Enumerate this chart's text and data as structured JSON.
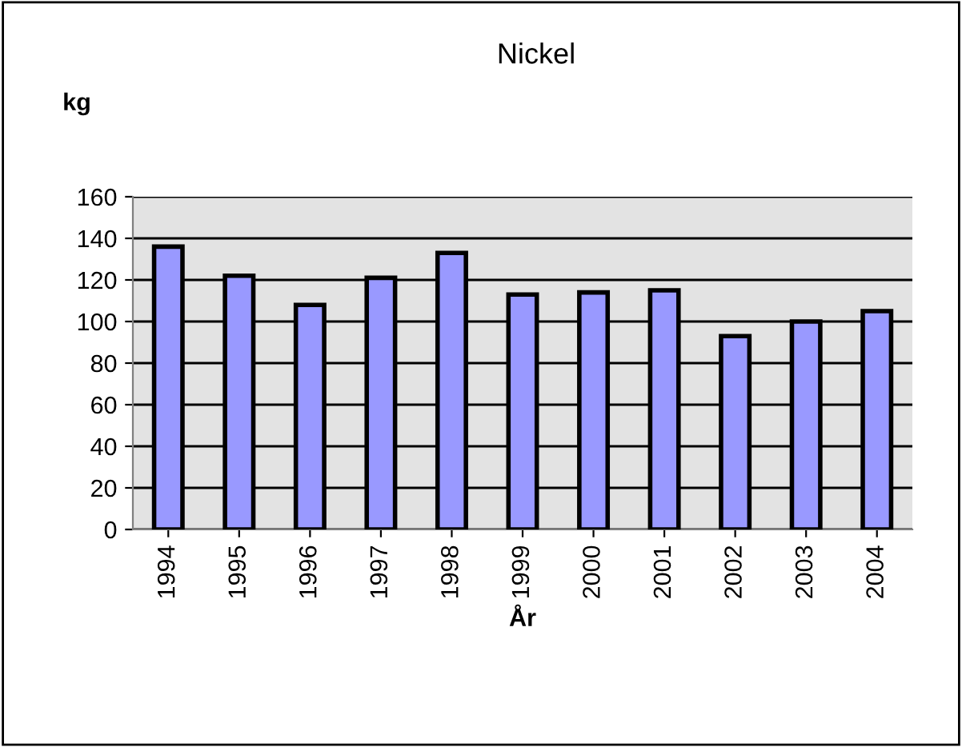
{
  "chart_data": {
    "type": "bar",
    "title": "Nickel",
    "ylabel": "kg",
    "xlabel": "År",
    "categories": [
      "1994",
      "1995",
      "1996",
      "1997",
      "1998",
      "1999",
      "2000",
      "2001",
      "2002",
      "2003",
      "2004"
    ],
    "values": [
      136,
      122,
      108,
      121,
      133,
      113,
      114,
      115,
      93,
      100,
      105
    ],
    "color": "#9999ff",
    "ylim": [
      0,
      160
    ],
    "yticks": [
      0,
      20,
      40,
      60,
      80,
      100,
      120,
      140,
      160
    ],
    "grid": "y",
    "legend": false
  }
}
